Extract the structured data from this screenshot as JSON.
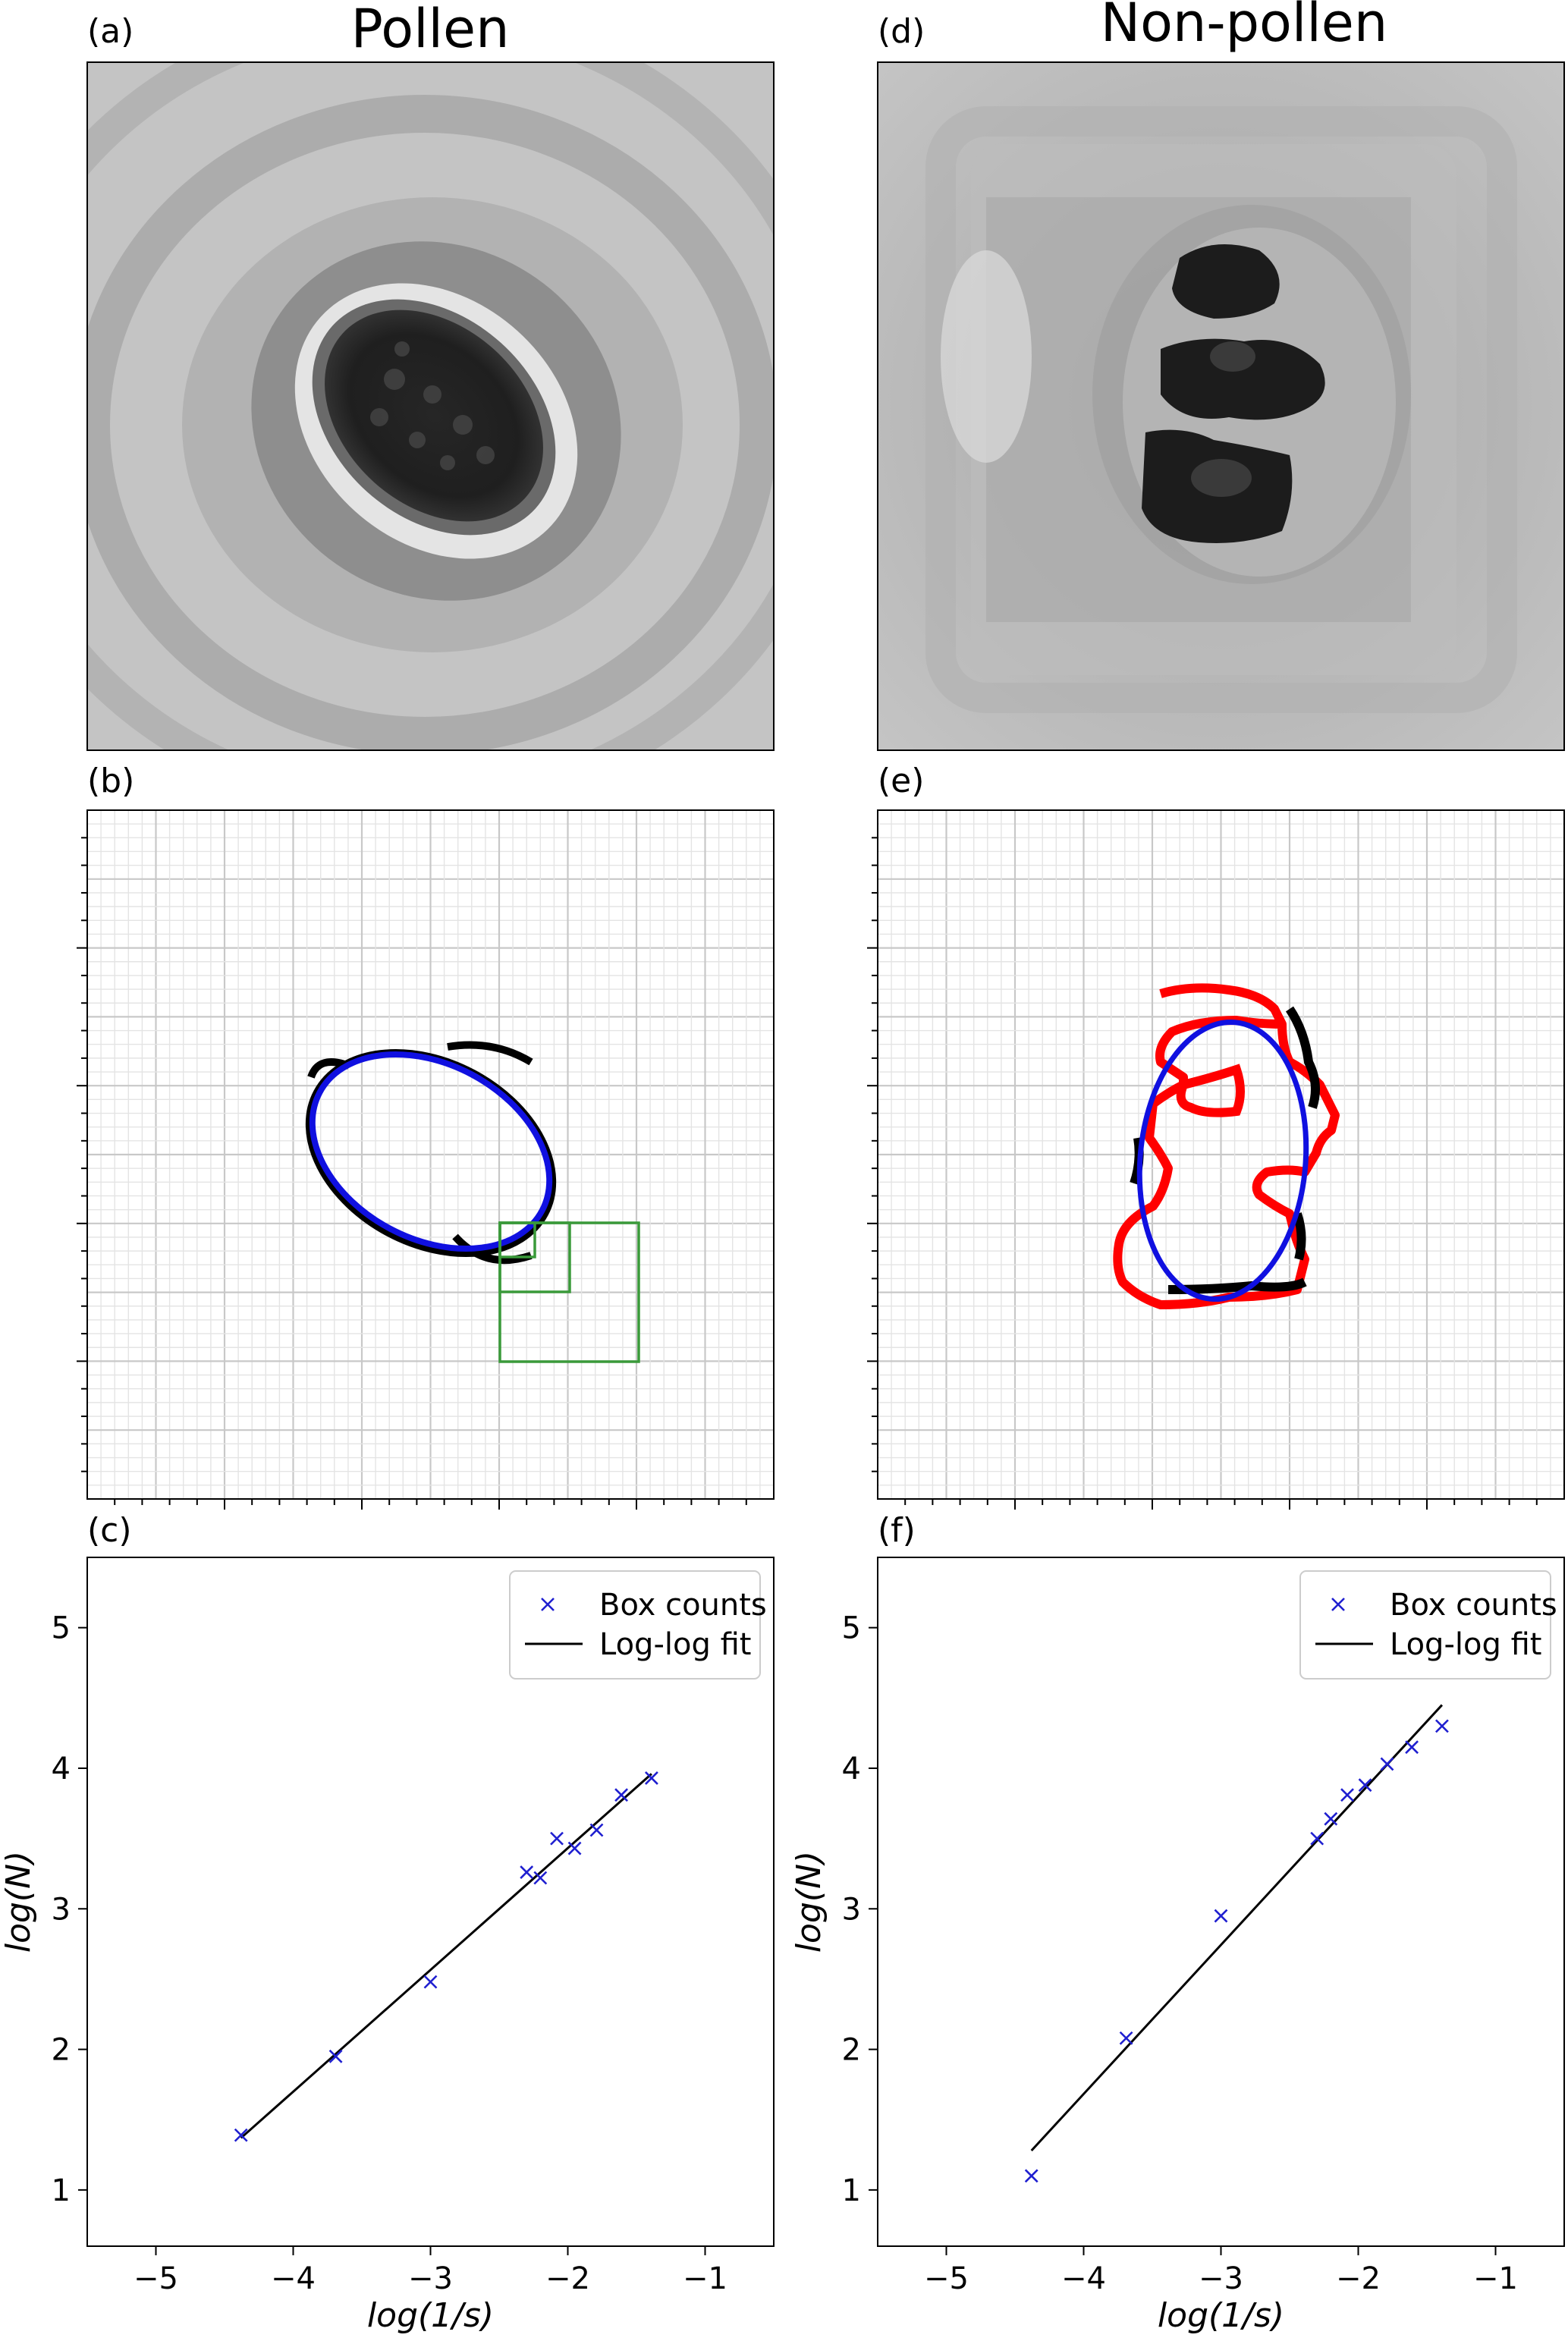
{
  "panels": {
    "a": {
      "tag": "(a)",
      "title": "Pollen"
    },
    "d": {
      "tag": "(d)",
      "title": "Non-pollen"
    },
    "b": {
      "tag": "(b)"
    },
    "e": {
      "tag": "(e)"
    },
    "c": {
      "tag": "(c)"
    },
    "f": {
      "tag": "(f)"
    }
  },
  "colors": {
    "boundary": "#000000",
    "ellipse": "#1010e0",
    "excess": "#ff0000",
    "box": "#3a9a3a",
    "grid_major": "#c8c8c8",
    "grid_minor": "#e4e4e4",
    "marker": "#1f1fd0",
    "fit": "#000000"
  },
  "chart_data": [
    {
      "panel": "c",
      "type": "scatter",
      "xlabel": "log(1/s)",
      "ylabel": "log(N)",
      "xlim": [
        -5.5,
        -0.5
      ],
      "ylim": [
        0.6,
        5.5
      ],
      "xticks": [
        -5,
        -4,
        -3,
        -2,
        -1
      ],
      "yticks": [
        1,
        2,
        3,
        4,
        5
      ],
      "grid": false,
      "legend": "top-right",
      "legend_entries": [
        "Box counts",
        "Log-log fit"
      ],
      "series": [
        {
          "name": "Box counts",
          "kind": "marker",
          "x": [
            -4.38,
            -3.69,
            -3.0,
            -2.3,
            -2.2,
            -2.08,
            -1.95,
            -1.79,
            -1.61,
            -1.39
          ],
          "y": [
            1.39,
            1.95,
            2.48,
            3.26,
            3.22,
            3.5,
            3.43,
            3.56,
            3.81,
            3.93
          ]
        },
        {
          "name": "Log-log fit",
          "kind": "line",
          "x": [
            -4.38,
            -1.39
          ],
          "y": [
            1.37,
            3.96
          ]
        }
      ]
    },
    {
      "panel": "f",
      "type": "scatter",
      "xlabel": "log(1/s)",
      "ylabel": "log(N)",
      "xlim": [
        -5.5,
        -0.5
      ],
      "ylim": [
        0.6,
        5.5
      ],
      "xticks": [
        -5,
        -4,
        -3,
        -2,
        -1
      ],
      "yticks": [
        1,
        2,
        3,
        4,
        5
      ],
      "grid": false,
      "legend": "top-right",
      "legend_entries": [
        "Box counts",
        "Log-log fit"
      ],
      "series": [
        {
          "name": "Box counts",
          "kind": "marker",
          "x": [
            -4.38,
            -3.69,
            -3.0,
            -2.3,
            -2.2,
            -2.08,
            -1.95,
            -1.79,
            -1.61,
            -1.39
          ],
          "y": [
            1.1,
            2.08,
            2.95,
            3.5,
            3.64,
            3.81,
            3.88,
            4.03,
            4.15,
            4.3
          ]
        },
        {
          "name": "Log-log fit",
          "kind": "line",
          "x": [
            -4.38,
            -1.39
          ],
          "y": [
            1.28,
            4.45
          ]
        }
      ]
    }
  ]
}
